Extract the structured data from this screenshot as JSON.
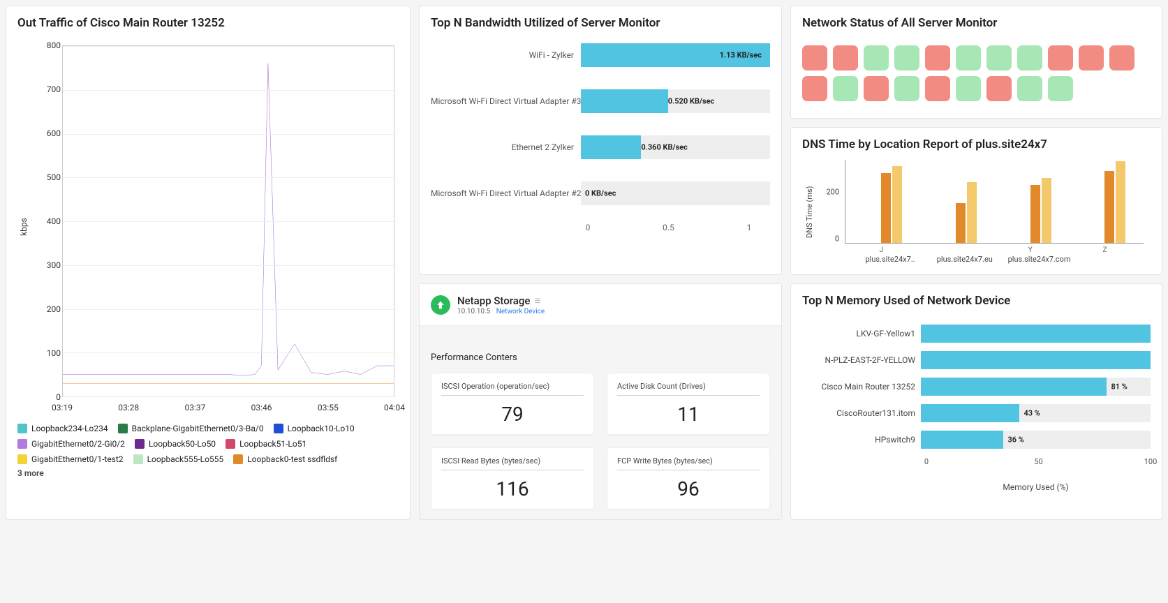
{
  "bandwidth": {
    "title": "Top N Bandwidth Utilized of Server Monitor",
    "bar_color": "#50c4e0",
    "track_color": "#eeeeee",
    "xmax": 1.13,
    "xticks": [
      0,
      0.5,
      1
    ],
    "rows": [
      {
        "label": "WiFi - Zylker",
        "value": 1.13,
        "value_text": "1.13 KB/sec"
      },
      {
        "label": "Microsoft Wi-Fi Direct Virtual Adapter #3-..",
        "value": 0.52,
        "value_text": "0.520 KB/sec"
      },
      {
        "label": "Ethernet 2 Zylker",
        "value": 0.36,
        "value_text": "0.360 KB/sec"
      },
      {
        "label": "Microsoft Wi-Fi Direct Virtual Adapter #2-..",
        "value": 0,
        "value_text": "0 KB/sec"
      }
    ]
  },
  "status": {
    "title": "Network Status of All Server Monitor",
    "colors": {
      "ok": "#a7e6b5",
      "down": "#f28b82"
    },
    "cells": [
      "down",
      "down",
      "ok",
      "ok",
      "down",
      "ok",
      "ok",
      "ok",
      "down",
      "down",
      "down",
      "down",
      "ok",
      "down",
      "ok",
      "down",
      "ok",
      "down",
      "ok",
      "ok"
    ]
  },
  "dns": {
    "title": "DNS Time by Location Report of plus.site24x7",
    "ylabel": "DNS Time (ms)",
    "ymax": 360,
    "yticks": [
      0,
      200
    ],
    "bar_colors": [
      "#e28a2b",
      "#f3c96b"
    ],
    "x_short": [
      "J",
      "",
      "Y",
      "Z"
    ],
    "x_labels": [
      "plus.site24x7..",
      "plus.site24x7.eu",
      "plus.site24x7.com",
      ""
    ],
    "groups": [
      {
        "a": 300,
        "b": 330
      },
      {
        "a": 170,
        "b": 260
      },
      {
        "a": 250,
        "b": 280
      },
      {
        "a": 310,
        "b": 350
      }
    ]
  },
  "netapp": {
    "title": "Netapp Storage",
    "ip": "10.10.10.5",
    "devtype": "Network Device",
    "section": "Performance Conters",
    "cards": [
      {
        "label": "ISCSI Operation (operation/sec)",
        "value": "79"
      },
      {
        "label": "Active Disk Count (Drives)",
        "value": "11"
      },
      {
        "label": "ISCSI Read Bytes (bytes/sec)",
        "value": "116"
      },
      {
        "label": "FCP Write Bytes (bytes/sec)",
        "value": "96"
      }
    ]
  },
  "memory": {
    "title": "Top N Memory Used of Network Device",
    "bar_color": "#50c4e0",
    "xlabel": "Memory Used (%)",
    "xticks": [
      0,
      50,
      100
    ],
    "rows": [
      {
        "label": "LKV-GF-Yellow1",
        "pct": 100,
        "text": ""
      },
      {
        "label": "N-PLZ-EAST-2F-YELLOW",
        "pct": 100,
        "text": ""
      },
      {
        "label": "Cisco Main Router 13252",
        "pct": 81,
        "text": "81 %"
      },
      {
        "label": "CiscoRouter131.itom",
        "pct": 43,
        "text": "43 %"
      },
      {
        "label": "HPswitch9",
        "pct": 36,
        "text": "36 %"
      }
    ]
  },
  "traffic": {
    "title": "Out Traffic of Cisco Main Router 13252",
    "ylabel": "kbps",
    "ymin": 0,
    "ymax": 800,
    "ytick_step": 100,
    "xticks": [
      "03:19",
      "03:28",
      "03:37",
      "03:46",
      "03:55",
      "04:04"
    ],
    "series_main": {
      "color": "#9b59d0",
      "points": [
        [
          0,
          50
        ],
        [
          0.45,
          50
        ],
        [
          0.5,
          50
        ],
        [
          0.55,
          48
        ],
        [
          0.58,
          50
        ],
        [
          0.6,
          70
        ],
        [
          0.62,
          760
        ],
        [
          0.65,
          60
        ],
        [
          0.7,
          120
        ],
        [
          0.75,
          55
        ],
        [
          0.8,
          50
        ],
        [
          0.85,
          58
        ],
        [
          0.9,
          50
        ],
        [
          0.95,
          70
        ],
        [
          1.0,
          70
        ]
      ]
    },
    "series_flat": {
      "color": "#e08a2b",
      "y": 30
    },
    "legend": [
      {
        "color": "#50c4c8",
        "label": "Loopback234-Lo234"
      },
      {
        "color": "#2a7a4a",
        "label": "Backplane-GigabitEthernet0/3-Ba/0"
      },
      {
        "color": "#1f4fd6",
        "label": "Loopback10-Lo10"
      },
      {
        "color": "#b57ae0",
        "label": "GigabitEthernet0/2-Gi0/2"
      },
      {
        "color": "#6b2a8e",
        "label": "Loopback50-Lo50"
      },
      {
        "color": "#d1486a",
        "label": "Loopback51-Lo51"
      },
      {
        "color": "#f2d43a",
        "label": "GigabitEthernet0/1-test2"
      },
      {
        "color": "#bfe6c4",
        "label": "Loopback555-Lo555"
      },
      {
        "color": "#e08a2b",
        "label": "Loopback0-test ssdfldsf"
      }
    ],
    "legend_more": "3 more"
  }
}
